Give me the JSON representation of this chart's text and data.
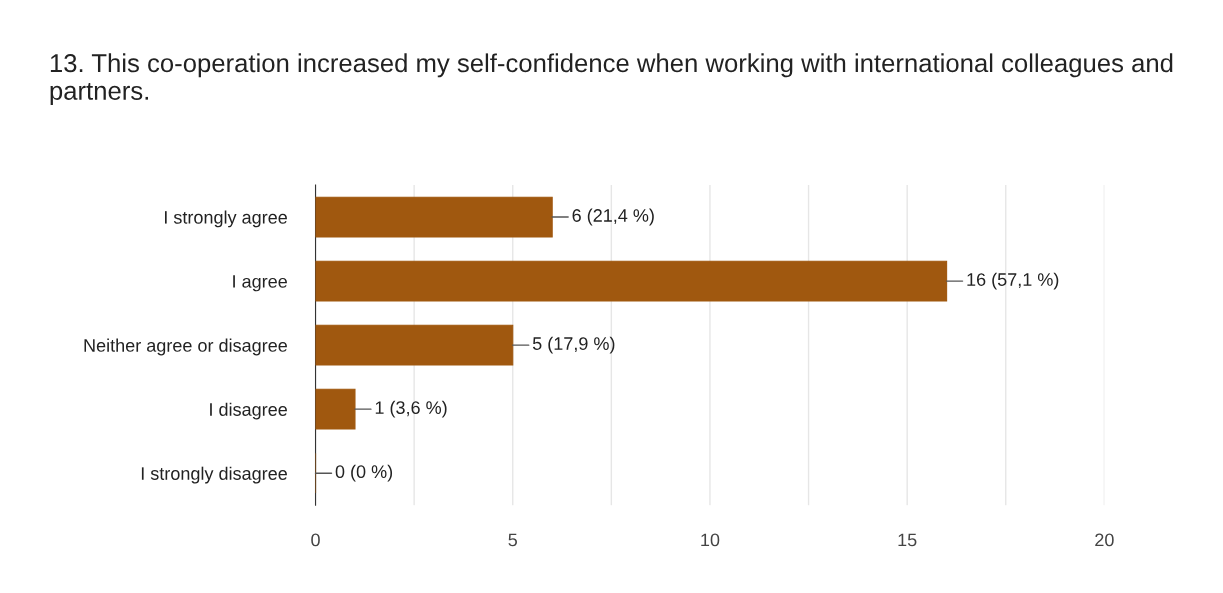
{
  "chart_data": {
    "type": "bar",
    "orientation": "horizontal",
    "title": "13. This co-operation increased my self-confidence when working with international colleagues and partners.",
    "categories": [
      "I strongly agree",
      "I agree",
      "Neither agree or disagree",
      "I disagree",
      "I strongly disagree"
    ],
    "values": [
      6,
      16,
      5,
      1,
      0
    ],
    "value_labels": [
      "6 (21,4 %)",
      "16 (57,1 %)",
      "5 (17,9 %)",
      "1 (3,6 %)",
      "0 (0 %)"
    ],
    "color": "#a0580f",
    "xlim": [
      0,
      20
    ],
    "xticks": [
      0,
      {
        "value": 2.5,
        "label": null
      },
      5,
      {
        "value": 7.5,
        "label": null
      },
      10,
      {
        "value": 12.5,
        "label": null
      },
      15,
      {
        "value": 17.5,
        "label": null
      },
      20
    ],
    "grid": "x",
    "legend": false
  }
}
